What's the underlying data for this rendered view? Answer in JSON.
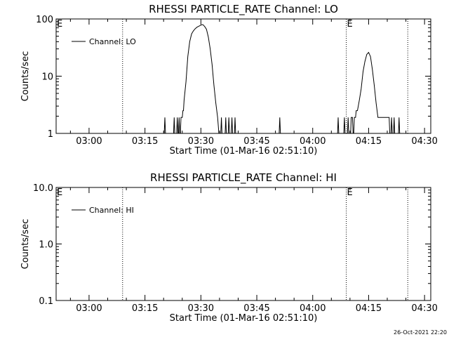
{
  "chart_data": [
    {
      "type": "line",
      "title": "RHESSI PARTICLE_RATE Channel: LO",
      "xlabel": "Start Time (01-Mar-16 02:51:10)",
      "ylabel": "Counts/sec",
      "yscale": "log",
      "ylim": [
        1,
        100
      ],
      "xlim": [
        "02:51:10",
        "04:31:40"
      ],
      "grid": false,
      "legend_position": "top-left",
      "x_ticks": [
        "03:00",
        "03:15",
        "03:30",
        "03:45",
        "04:00",
        "04:15",
        "04:30"
      ],
      "y_ticks": [
        "1",
        "10",
        "100"
      ],
      "vlines": [
        "03:09:00",
        "04:09:00",
        "04:25:30"
      ],
      "markers": [
        {
          "label": "E",
          "x": "02:51:10"
        },
        {
          "label": "E",
          "x": "04:09:00"
        }
      ],
      "series": [
        {
          "name": "Channel: LO",
          "color": "#000000",
          "points": [
            [
              "03:20:10",
              1
            ],
            [
              "03:20:20",
              1.9
            ],
            [
              "03:20:30",
              1
            ],
            [
              "03:22:40",
              1
            ],
            [
              "03:22:50",
              1.9
            ],
            [
              "03:23:00",
              1
            ],
            [
              "03:23:30",
              1
            ],
            [
              "03:23:40",
              1.9
            ],
            [
              "03:23:50",
              1
            ],
            [
              "03:24:00",
              1
            ],
            [
              "03:24:10",
              1.9
            ],
            [
              "03:24:20",
              1
            ],
            [
              "03:24:30",
              1
            ],
            [
              "03:24:40",
              1.9
            ],
            [
              "03:25:00",
              1.9
            ],
            [
              "03:25:10",
              2.5
            ],
            [
              "03:25:20",
              2.5
            ],
            [
              "03:25:30",
              3.8
            ],
            [
              "03:26:00",
              8
            ],
            [
              "03:26:30",
              22
            ],
            [
              "03:27:00",
              40
            ],
            [
              "03:27:30",
              55
            ],
            [
              "03:28:00",
              62
            ],
            [
              "03:28:30",
              68
            ],
            [
              "03:29:00",
              72
            ],
            [
              "03:29:30",
              75
            ],
            [
              "03:30:00",
              78
            ],
            [
              "03:30:30",
              80
            ],
            [
              "03:31:00",
              74
            ],
            [
              "03:31:30",
              66
            ],
            [
              "03:32:00",
              48
            ],
            [
              "03:32:30",
              30
            ],
            [
              "03:33:00",
              16
            ],
            [
              "03:33:30",
              7
            ],
            [
              "03:34:00",
              3.4
            ],
            [
              "03:34:30",
              1.9
            ],
            [
              "03:34:50",
              1
            ],
            [
              "03:35:20",
              1
            ],
            [
              "03:35:30",
              1.9
            ],
            [
              "03:35:40",
              1
            ],
            [
              "03:36:30",
              1
            ],
            [
              "03:36:40",
              1.9
            ],
            [
              "03:36:50",
              1
            ],
            [
              "03:37:20",
              1
            ],
            [
              "03:37:30",
              1.9
            ],
            [
              "03:37:40",
              1
            ],
            [
              "03:38:10",
              1
            ],
            [
              "03:38:20",
              1.9
            ],
            [
              "03:38:30",
              1
            ],
            [
              "03:39:00",
              1
            ],
            [
              "03:39:10",
              1.9
            ],
            [
              "03:39:20",
              1
            ],
            [
              "03:51:00",
              1
            ],
            [
              "03:51:10",
              1.9
            ],
            [
              "03:51:20",
              1
            ],
            [
              "04:06:40",
              1
            ],
            [
              "04:06:50",
              1.9
            ],
            [
              "04:07:00",
              1
            ],
            [
              "04:08:20",
              1
            ],
            [
              "04:08:30",
              1.9
            ],
            [
              "04:08:40",
              1
            ],
            [
              "04:09:20",
              1
            ],
            [
              "04:09:30",
              1.9
            ],
            [
              "04:09:40",
              1
            ],
            [
              "04:10:10",
              1
            ],
            [
              "04:10:20",
              1.9
            ],
            [
              "04:10:40",
              1.9
            ],
            [
              "04:10:50",
              1
            ],
            [
              "04:11:00",
              1
            ],
            [
              "04:11:10",
              1.9
            ],
            [
              "04:11:30",
              1.9
            ],
            [
              "04:11:40",
              2.5
            ],
            [
              "04:12:00",
              2.5
            ],
            [
              "04:12:30",
              3.8
            ],
            [
              "04:13:00",
              6
            ],
            [
              "04:13:30",
              12
            ],
            [
              "04:14:00",
              18
            ],
            [
              "04:14:30",
              24
            ],
            [
              "04:15:00",
              26
            ],
            [
              "04:15:30",
              22
            ],
            [
              "04:16:00",
              13
            ],
            [
              "04:16:30",
              7
            ],
            [
              "04:17:00",
              3.4
            ],
            [
              "04:17:30",
              1.9
            ],
            [
              "04:20:30",
              1.9
            ],
            [
              "04:20:40",
              1
            ],
            [
              "04:21:00",
              1
            ],
            [
              "04:21:10",
              1.9
            ],
            [
              "04:21:20",
              1
            ],
            [
              "04:21:40",
              1
            ],
            [
              "04:21:50",
              1.9
            ],
            [
              "04:22:00",
              1
            ],
            [
              "04:23:00",
              1
            ],
            [
              "04:23:10",
              1.9
            ],
            [
              "04:23:20",
              1
            ]
          ]
        }
      ]
    },
    {
      "type": "line",
      "title": "RHESSI PARTICLE_RATE Channel: HI",
      "xlabel": "Start Time (01-Mar-16 02:51:10)",
      "ylabel": "Counts/sec",
      "yscale": "log",
      "ylim": [
        0.1,
        10
      ],
      "xlim": [
        "02:51:10",
        "04:31:40"
      ],
      "grid": false,
      "legend_position": "top-left",
      "x_ticks": [
        "03:00",
        "03:15",
        "03:30",
        "03:45",
        "04:00",
        "04:15",
        "04:30"
      ],
      "y_ticks": [
        "0.1",
        "1.0",
        "10.0"
      ],
      "vlines": [
        "03:09:00",
        "04:09:00",
        "04:25:30"
      ],
      "markers": [
        {
          "label": "E",
          "x": "02:51:10"
        },
        {
          "label": "E",
          "x": "04:09:00"
        }
      ],
      "series": [
        {
          "name": "Channel: HI",
          "color": "#000000",
          "points": []
        }
      ]
    }
  ],
  "footer": {
    "timestamp": "26-Oct-2021 22:20"
  }
}
